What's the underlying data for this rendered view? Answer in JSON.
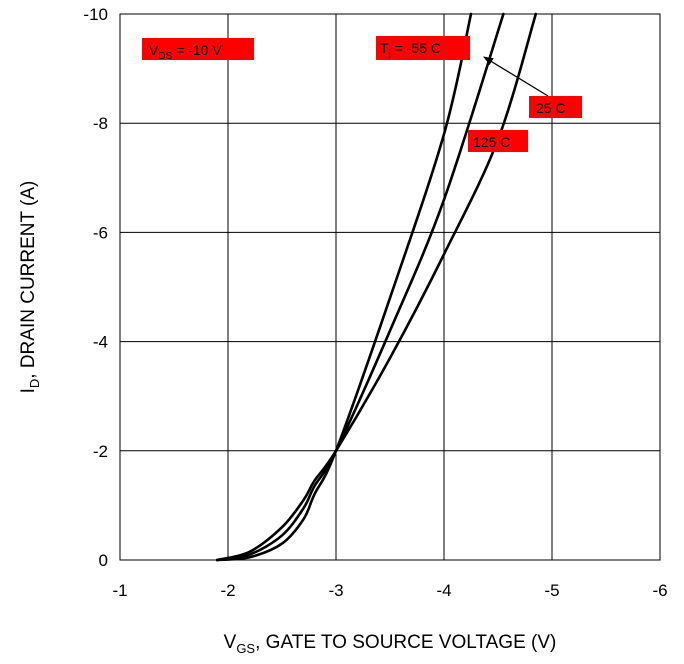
{
  "chart_data": {
    "type": "line",
    "title": "",
    "xlabel": {
      "main": "V",
      "sub": "GS",
      "rest": ", GATE TO SOURCE VOLTAGE (V)"
    },
    "ylabel": {
      "main": "I",
      "sub": "D",
      "rest": ", DRAIN CURRENT (A)"
    },
    "xlim": [
      -1,
      -6
    ],
    "ylim": [
      0,
      -10
    ],
    "grid": true,
    "x_ticks": [
      "-1",
      "-2",
      "-3",
      "-4",
      "-5",
      "-6"
    ],
    "y_ticks": [
      "0",
      "-2",
      "-4",
      "-6",
      "-8",
      "-10"
    ],
    "series": [
      {
        "name": "Tj = -55 C",
        "x": [
          -1.9,
          -2.2,
          -2.5,
          -2.7,
          -2.8,
          -3.0,
          -3.5,
          -4.0,
          -4.25
        ],
        "y": [
          0,
          -0.05,
          -0.3,
          -0.75,
          -1.2,
          -2.0,
          -4.8,
          -7.8,
          -10.0
        ]
      },
      {
        "name": "25 C",
        "x": [
          -1.9,
          -2.2,
          -2.5,
          -2.7,
          -2.8,
          -3.0,
          -3.5,
          -4.0,
          -4.55
        ],
        "y": [
          0,
          -0.1,
          -0.45,
          -0.95,
          -1.35,
          -2.0,
          -4.2,
          -6.6,
          -10.0
        ]
      },
      {
        "name": "125 C",
        "x": [
          -1.9,
          -2.2,
          -2.5,
          -2.7,
          -2.8,
          -3.0,
          -3.5,
          -4.0,
          -4.5,
          -4.85
        ],
        "y": [
          0,
          -0.15,
          -0.6,
          -1.1,
          -1.45,
          -2.0,
          -3.7,
          -5.6,
          -7.7,
          -10.0
        ]
      }
    ],
    "annotations": {
      "vds": {
        "main": "V",
        "sub": "DS",
        "rest": " = -10 V",
        "bg": "#ff0000"
      },
      "tj": {
        "main": "T",
        "sub": "j",
        "rest": " = -55 C",
        "bg": "#ff0000"
      },
      "t25": {
        "text": "25 C",
        "bg": "#ff0000"
      },
      "t125": {
        "text": "125 C",
        "bg": "#ff0000"
      }
    },
    "colors": {
      "line": "#000000",
      "grid": "#000000",
      "label_bg": "#ff0000"
    }
  }
}
